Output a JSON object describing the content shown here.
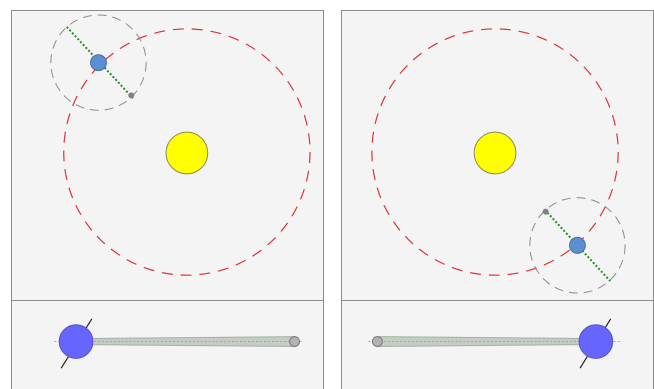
{
  "colors": {
    "panel_background": "#f4f4f4",
    "panel_border": "#8c8c8c",
    "sun_fill": "#ffff00",
    "earth_orbit": "#e0303a",
    "moon_orbit": "#8a8a8a",
    "planet_top_view": "#5b8fd4",
    "planet_side_view": "#6666ff",
    "axis_line": "#1f8f1f",
    "moon_fill": "#808080",
    "orbital_plane_band": "#c4ccc4"
  },
  "icons": {
    "sun": "sun-icon",
    "planet": "planet-icon",
    "moon": "moon-icon"
  },
  "scenes": [
    {
      "name": "orbit-position-left",
      "orbit_angle_deg": 135,
      "moon_side": "right"
    },
    {
      "name": "orbit-position-right",
      "orbit_angle_deg": 315,
      "moon_side": "left"
    }
  ]
}
